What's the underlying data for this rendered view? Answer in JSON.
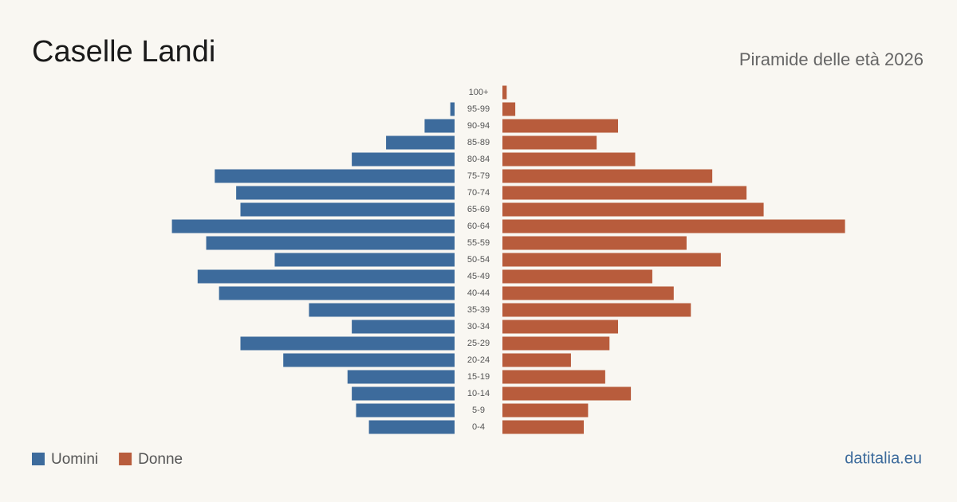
{
  "chart_data": {
    "type": "pyramid",
    "title": "Caselle Landi",
    "subtitle": "Piramide delle età 2026",
    "source": "datitalia.eu",
    "categories": [
      "100+",
      "95-99",
      "90-94",
      "85-89",
      "80-84",
      "75-79",
      "70-74",
      "65-69",
      "60-64",
      "55-59",
      "50-54",
      "45-49",
      "40-44",
      "35-39",
      "30-34",
      "25-29",
      "20-24",
      "15-19",
      "10-14",
      "5-9",
      "0-4"
    ],
    "series": [
      {
        "name": "Uomini",
        "color": "#3d6b9c",
        "values": [
          0,
          1,
          7,
          16,
          24,
          56,
          51,
          50,
          66,
          58,
          42,
          60,
          55,
          34,
          24,
          50,
          40,
          25,
          24,
          23,
          20
        ]
      },
      {
        "name": "Donne",
        "color": "#b85c3c",
        "values": [
          1,
          3,
          27,
          22,
          31,
          49,
          57,
          61,
          80,
          43,
          51,
          35,
          40,
          44,
          27,
          25,
          16,
          24,
          30,
          20,
          19
        ]
      }
    ]
  }
}
